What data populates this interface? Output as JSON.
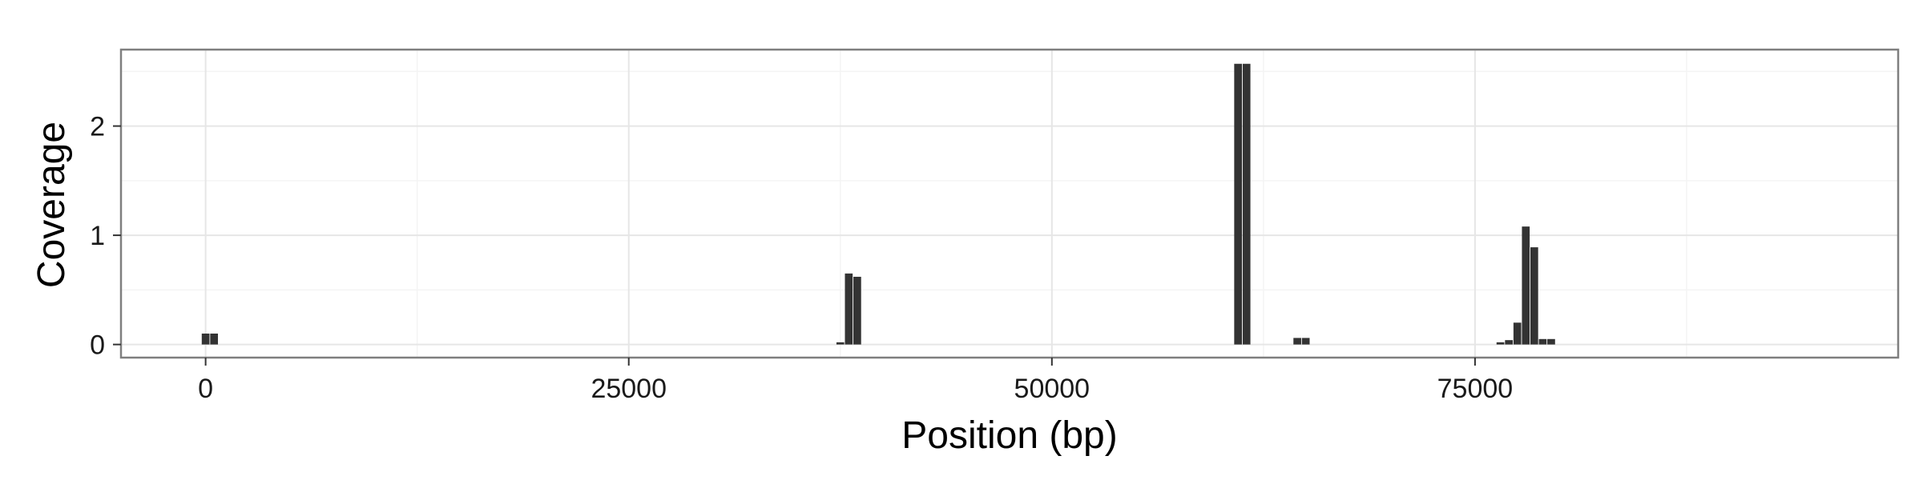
{
  "chart_data": {
    "type": "bar",
    "title": "",
    "xlabel": "Position (bp)",
    "ylabel": "Coverage",
    "xlim": [
      -5000,
      100000
    ],
    "ylim": [
      -0.12,
      2.7
    ],
    "x_ticks": [
      0,
      25000,
      50000,
      75000
    ],
    "x_tick_labels": [
      "0",
      "25000",
      "50000",
      "75000"
    ],
    "y_ticks": [
      0,
      1,
      2
    ],
    "y_tick_labels": [
      "0",
      "1",
      "2"
    ],
    "grid": true,
    "bin_width": 500,
    "bar_color": "#333333",
    "x": [
      0,
      500,
      37500,
      38000,
      38500,
      61000,
      61500,
      64500,
      65000,
      76500,
      77000,
      77500,
      78000,
      78500,
      79000,
      79500
    ],
    "values": [
      0.1,
      0.1,
      0.02,
      0.65,
      0.62,
      2.57,
      2.57,
      0.06,
      0.06,
      0.02,
      0.04,
      0.2,
      1.08,
      0.89,
      0.05,
      0.05
    ]
  },
  "colors": {
    "panel_border": "#7f7f7f",
    "grid_major": "#e6e6e6",
    "grid_minor": "#f4f4f4",
    "bar": "#333333"
  }
}
